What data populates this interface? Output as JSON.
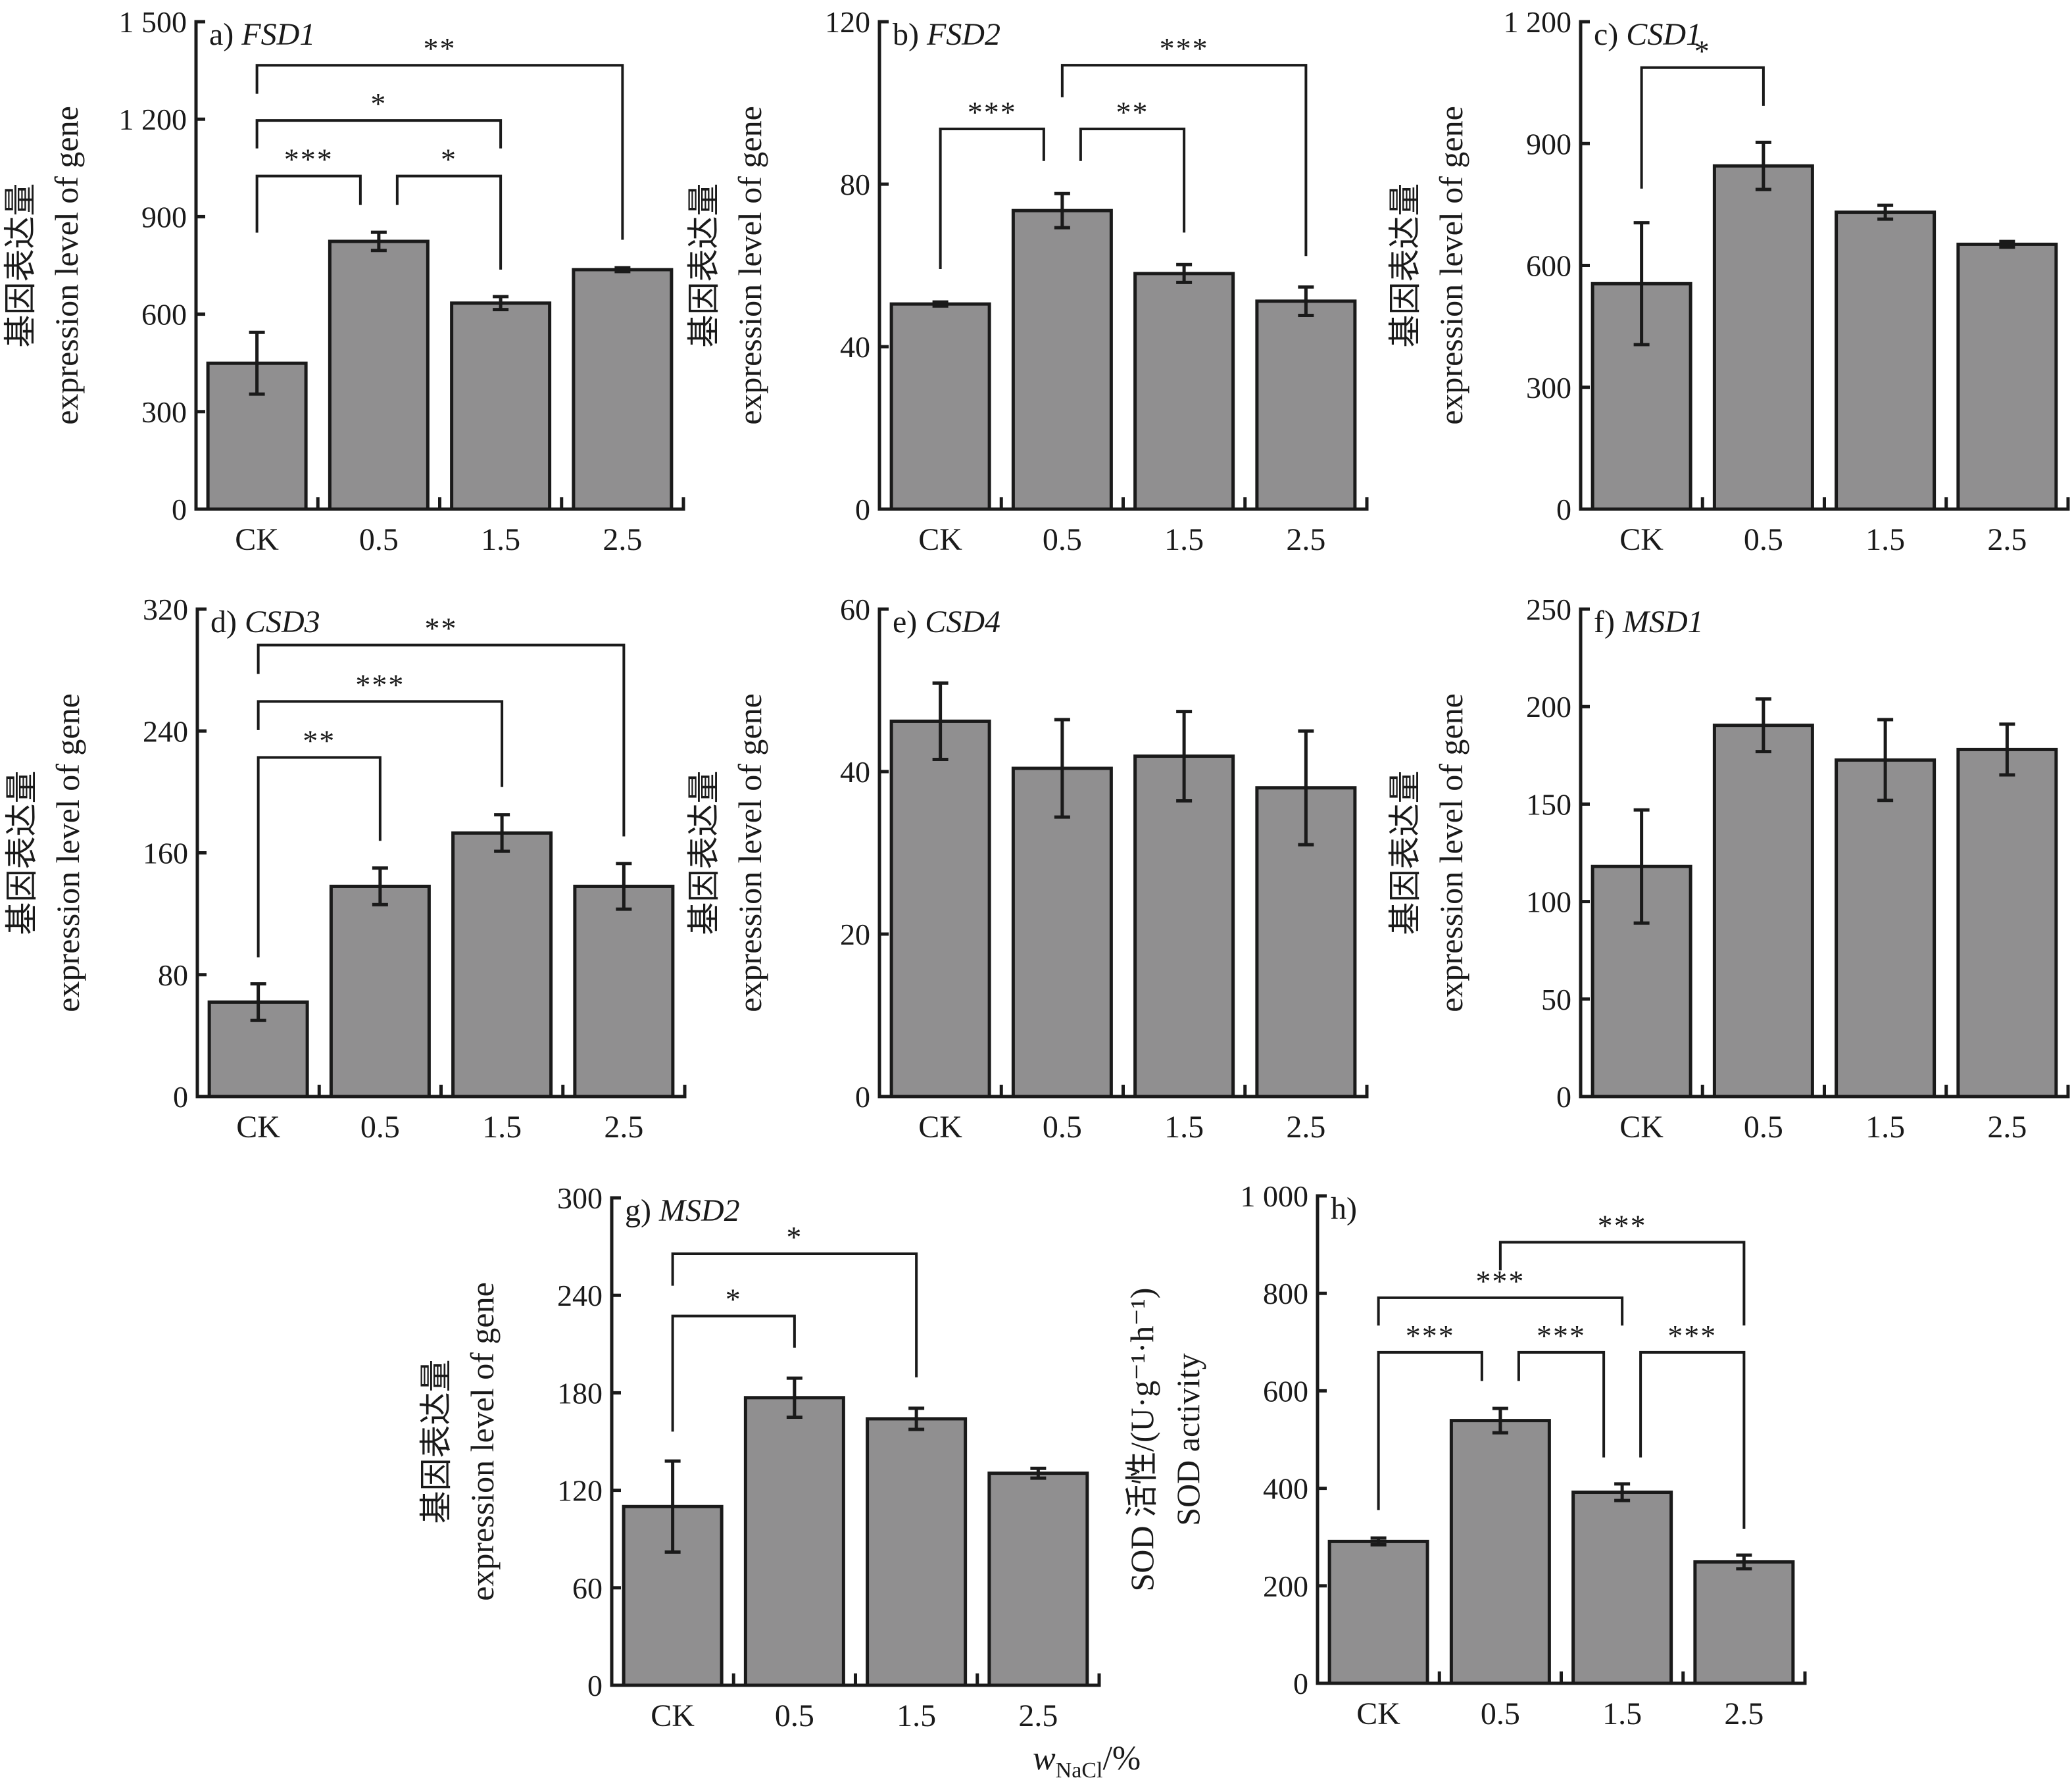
{
  "figure": {
    "categories": [
      "CK",
      "0.5",
      "1.5",
      "2.5"
    ],
    "xlabel": {
      "var": "w",
      "subscript": "NaCl",
      "unit": "/%"
    },
    "gene_ylabel": {
      "line1": "基因表达量",
      "line2": "expression level of gene"
    },
    "sod_ylabel": {
      "line1": "SOD 活性/(U·g⁻¹·h⁻¹)",
      "line2": "SOD activity"
    },
    "bar_color": "#908f90",
    "edge_color": "#1a1a1a"
  },
  "chart_data": [
    {
      "type": "bar",
      "id": "a",
      "panel_label": "a)",
      "title": "FSD1",
      "categories": [
        "CK",
        "0.5",
        "1.5",
        "2.5"
      ],
      "values": [
        449,
        824,
        634,
        737
      ],
      "errors": [
        95,
        28,
        20,
        6
      ],
      "ylim": [
        0,
        1500
      ],
      "yticks": [
        0,
        300,
        600,
        900,
        1200,
        1500
      ],
      "ytick_labels": [
        "0",
        "300",
        "600",
        "900",
        "1 200",
        "1 500"
      ],
      "ylabel": "基因表达量 expression level of gene",
      "xlabel": "",
      "significance": [
        {
          "from": 0,
          "to": 3,
          "label": "**",
          "y": 1366,
          "left_end": 1278,
          "right_end": 829
        },
        {
          "from": 0,
          "to": 2,
          "label": "*",
          "y": 1196,
          "left_end": 1110,
          "right_end": 1110
        },
        {
          "from": 0,
          "to": 1,
          "label": "***",
          "y": 1025,
          "left_end": 851,
          "right_end": 936
        },
        {
          "from": 1,
          "to": 2,
          "label": "*",
          "y": 1025,
          "left_end": 936,
          "right_end": 737
        }
      ]
    },
    {
      "type": "bar",
      "id": "b",
      "panel_label": "b)",
      "title": "FSD2",
      "categories": [
        "CK",
        "0.5",
        "1.5",
        "2.5"
      ],
      "values": [
        50.5,
        73.5,
        58,
        51.2
      ],
      "errors": [
        0.5,
        4.2,
        2.2,
        3.5
      ],
      "ylim": [
        0,
        120
      ],
      "yticks": [
        0,
        40,
        80,
        120
      ],
      "ytick_labels": [
        "0",
        "40",
        "80",
        "120"
      ],
      "ylabel": "基因表达量 expression level of gene",
      "xlabel": "",
      "significance": [
        {
          "from": 1,
          "to": 3,
          "label": "***",
          "y": 109.3,
          "left_end": 101.4,
          "right_end": 62.3
        },
        {
          "from": 0,
          "to": 1,
          "label": "***",
          "y": 93.6,
          "left_end": 59.1,
          "right_end": 85.7
        },
        {
          "from": 1,
          "to": 2,
          "label": "**",
          "y": 93.6,
          "left_end": 85.7,
          "right_end": 68.1
        }
      ]
    },
    {
      "type": "bar",
      "id": "c",
      "panel_label": "c)",
      "title": "CSD1",
      "categories": [
        "CK",
        "0.5",
        "1.5",
        "2.5"
      ],
      "values": [
        555,
        845,
        731,
        652
      ],
      "errors": [
        150,
        58,
        17,
        7
      ],
      "ylim": [
        0,
        1200
      ],
      "yticks": [
        0,
        300,
        600,
        900,
        1200
      ],
      "ytick_labels": [
        "0",
        "300",
        "600",
        "900",
        "1 200"
      ],
      "ylabel": "基因表达量 expression level of gene",
      "xlabel": "",
      "significance": [
        {
          "from": 0,
          "to": 1,
          "label": "*",
          "y": 1087,
          "left_end": 789,
          "right_end": 993
        }
      ]
    },
    {
      "type": "bar",
      "id": "d",
      "panel_label": "d)",
      "title": "CSD3",
      "categories": [
        "CK",
        "0.5",
        "1.5",
        "2.5"
      ],
      "values": [
        62,
        138,
        173,
        138
      ],
      "errors": [
        12,
        12,
        12,
        15
      ],
      "ylim": [
        0,
        320
      ],
      "yticks": [
        0,
        80,
        160,
        240,
        320
      ],
      "ytick_labels": [
        "0",
        "80",
        "160",
        "240",
        "320"
      ],
      "ylabel": "基因表达量 expression level of gene",
      "xlabel": "",
      "significance": [
        {
          "from": 0,
          "to": 3,
          "label": "**",
          "y": 296.4,
          "left_end": 277.4,
          "right_end": 170.8
        },
        {
          "from": 0,
          "to": 2,
          "label": "***",
          "y": 259.4,
          "left_end": 240.6,
          "right_end": 203.3
        },
        {
          "from": 0,
          "to": 1,
          "label": "**",
          "y": 222.6,
          "left_end": 91.4,
          "right_end": 167.9
        }
      ]
    },
    {
      "type": "bar",
      "id": "e",
      "panel_label": "e)",
      "title": "CSD4",
      "categories": [
        "CK",
        "0.5",
        "1.5",
        "2.5"
      ],
      "values": [
        46.2,
        40.4,
        41.9,
        38.0
      ],
      "errors": [
        4.7,
        6.0,
        5.5,
        7.0
      ],
      "ylim": [
        0,
        60
      ],
      "yticks": [
        0,
        20,
        40,
        60
      ],
      "ytick_labels": [
        "0",
        "20",
        "40",
        "60"
      ],
      "ylabel": "基因表达量 expression level of gene",
      "xlabel": "",
      "significance": []
    },
    {
      "type": "bar",
      "id": "f",
      "panel_label": "f)",
      "title": "MSD1",
      "categories": [
        "CK",
        "0.5",
        "1.5",
        "2.5"
      ],
      "values": [
        118,
        190.4,
        172.6,
        178
      ],
      "errors": [
        29,
        13.5,
        20.7,
        13
      ],
      "ylim": [
        0,
        250
      ],
      "yticks": [
        0,
        50,
        100,
        150,
        200,
        250
      ],
      "ytick_labels": [
        "0",
        "50",
        "100",
        "150",
        "200",
        "250"
      ],
      "ylabel": "基因表达量 expression level of gene",
      "xlabel": "",
      "significance": []
    },
    {
      "type": "bar",
      "id": "g",
      "panel_label": "g)",
      "title": "MSD2",
      "categories": [
        "CK",
        "0.5",
        "1.5",
        "2.5"
      ],
      "values": [
        110,
        177,
        164,
        130.5
      ],
      "errors": [
        28,
        12,
        6.5,
        3
      ],
      "ylim": [
        0,
        300
      ],
      "yticks": [
        0,
        60,
        120,
        180,
        240,
        300
      ],
      "ytick_labels": [
        "0",
        "60",
        "120",
        "180",
        "240",
        "300"
      ],
      "ylabel": "基因表达量 expression level of gene",
      "xlabel": "w_NaCl/%",
      "significance": [
        {
          "from": 0,
          "to": 2,
          "label": "*",
          "y": 265.6,
          "left_end": 245.9,
          "right_end": 189.5
        },
        {
          "from": 0,
          "to": 1,
          "label": "*",
          "y": 227.3,
          "left_end": 156.1,
          "right_end": 207.8
        }
      ]
    },
    {
      "type": "bar",
      "id": "h",
      "panel_label": "h)",
      "title": "",
      "categories": [
        "CK",
        "0.5",
        "1.5",
        "2.5"
      ],
      "values": [
        291,
        539,
        392,
        249
      ],
      "errors": [
        7,
        25,
        17,
        14
      ],
      "ylim": [
        0,
        1000
      ],
      "yticks": [
        0,
        200,
        400,
        600,
        800,
        1000
      ],
      "ytick_labels": [
        "0",
        "200",
        "400",
        "600",
        "800",
        "1 000"
      ],
      "ylabel": "SOD 活性/(U·g⁻¹·h⁻¹) SOD activity",
      "xlabel": "",
      "significance": [
        {
          "from": 1,
          "to": 3,
          "label": "***",
          "y": 904.9,
          "left_end": 847.2,
          "right_end": 734.1
        },
        {
          "from": 0,
          "to": 2,
          "label": "***",
          "y": 791,
          "left_end": 734,
          "right_end": 734
        },
        {
          "from": 0,
          "to": 1,
          "label": "***",
          "y": 678.9,
          "left_end": 355.3,
          "right_end": 620.3
        },
        {
          "from": 1,
          "to": 2,
          "label": "***",
          "y": 678.9,
          "left_end": 620.3,
          "right_end": 463.4
        },
        {
          "from": 2,
          "to": 3,
          "label": "***",
          "y": 678.9,
          "left_end": 463.4,
          "right_end": 317.1
        }
      ]
    }
  ]
}
